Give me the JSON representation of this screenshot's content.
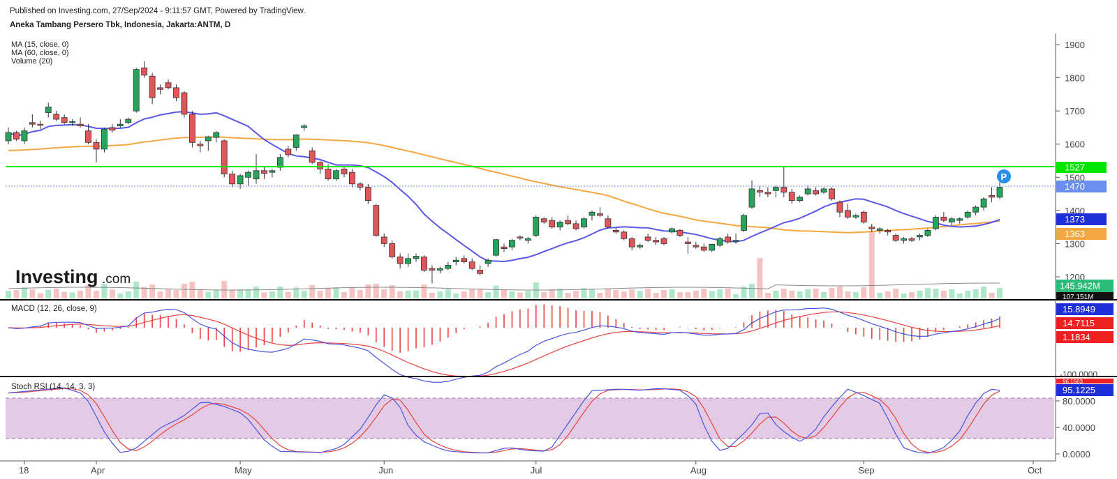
{
  "header": {
    "published": "Published on Investing.com, 27/Sep/2024 - 9:11:57 GMT, Powered by TradingView.",
    "instrument": "Aneka Tambang Persero Tbk, Indonesia, Jakarta:ANTM, D"
  },
  "watermark": {
    "brand": "Investing",
    "suffix": ".com"
  },
  "colors": {
    "up": "#26a65b",
    "down": "#e15759",
    "ma15": "#5b57e8",
    "ma60": "#f5a742",
    "support": "#00e600",
    "last": "#6b8ff0",
    "macd": "#4a54e0",
    "signal": "#e8413f",
    "stoch_k": "#4a54e0",
    "stoch_d": "#e8413f",
    "band": "#e3cbe6"
  },
  "chart_data": [
    {
      "type": "candlestick",
      "title": "Aneka Tambang Persero Tbk, Indonesia, Jakarta:ANTM, D",
      "legend": [
        "MA (15, close, 0)",
        "MA (60, close, 0)",
        "Volume (20)"
      ],
      "x_ticks": [
        "18",
        "Apr",
        "May",
        "Jun",
        "Jul",
        "Aug",
        "Sep",
        "Oct"
      ],
      "y_ticks": [
        "1200",
        "1300",
        "1400",
        "1500",
        "1600",
        "1700",
        "1800",
        "1900"
      ],
      "ylim": [
        1160,
        1930
      ],
      "price_line": 1470,
      "support_line": 1527,
      "ohlc": [
        [
          1610,
          1650,
          1600,
          1635
        ],
        [
          1635,
          1640,
          1610,
          1615
        ],
        [
          1610,
          1650,
          1600,
          1640
        ],
        [
          1665,
          1690,
          1650,
          1660
        ],
        [
          1660,
          1670,
          1645,
          1658
        ],
        [
          1695,
          1725,
          1680,
          1712
        ],
        [
          1690,
          1700,
          1670,
          1675
        ],
        [
          1680,
          1690,
          1660,
          1665
        ],
        [
          1665,
          1675,
          1655,
          1668
        ],
        [
          1660,
          1680,
          1650,
          1655
        ],
        [
          1640,
          1660,
          1600,
          1605
        ],
        [
          1605,
          1615,
          1545,
          1585
        ],
        [
          1585,
          1650,
          1575,
          1645
        ],
        [
          1650,
          1660,
          1635,
          1642
        ],
        [
          1655,
          1675,
          1650,
          1660
        ],
        [
          1665,
          1680,
          1660,
          1675
        ],
        [
          1700,
          1830,
          1695,
          1825
        ],
        [
          1830,
          1850,
          1800,
          1808
        ],
        [
          1805,
          1815,
          1720,
          1740
        ],
        [
          1770,
          1780,
          1750,
          1765
        ],
        [
          1785,
          1795,
          1765,
          1770
        ],
        [
          1770,
          1780,
          1730,
          1740
        ],
        [
          1755,
          1760,
          1680,
          1690
        ],
        [
          1690,
          1700,
          1590,
          1605
        ],
        [
          1600,
          1610,
          1575,
          1595
        ],
        [
          1610,
          1625,
          1580,
          1622
        ],
        [
          1620,
          1640,
          1605,
          1635
        ],
        [
          1610,
          1615,
          1500,
          1510
        ],
        [
          1510,
          1520,
          1470,
          1480
        ],
        [
          1480,
          1510,
          1465,
          1505
        ],
        [
          1500,
          1520,
          1475,
          1515
        ],
        [
          1495,
          1570,
          1480,
          1520
        ],
        [
          1520,
          1530,
          1495,
          1512
        ],
        [
          1515,
          1525,
          1500,
          1520
        ],
        [
          1530,
          1570,
          1520,
          1560
        ],
        [
          1585,
          1595,
          1560,
          1568
        ],
        [
          1590,
          1630,
          1580,
          1628
        ],
        [
          1650,
          1660,
          1640,
          1655
        ],
        [
          1580,
          1590,
          1540,
          1545
        ],
        [
          1545,
          1550,
          1510,
          1525
        ],
        [
          1525,
          1540,
          1490,
          1495
        ],
        [
          1495,
          1525,
          1490,
          1520
        ],
        [
          1525,
          1530,
          1500,
          1510
        ],
        [
          1515,
          1525,
          1470,
          1480
        ],
        [
          1480,
          1485,
          1460,
          1470
        ],
        [
          1470,
          1480,
          1420,
          1430
        ],
        [
          1415,
          1420,
          1320,
          1325
        ],
        [
          1320,
          1330,
          1290,
          1300
        ],
        [
          1300,
          1310,
          1255,
          1260
        ],
        [
          1260,
          1270,
          1225,
          1240
        ],
        [
          1240,
          1270,
          1230,
          1255
        ],
        [
          1255,
          1270,
          1245,
          1262
        ],
        [
          1260,
          1265,
          1215,
          1220
        ],
        [
          1225,
          1235,
          1180,
          1220
        ],
        [
          1220,
          1230,
          1210,
          1225
        ],
        [
          1225,
          1245,
          1220,
          1235
        ],
        [
          1245,
          1260,
          1235,
          1250
        ],
        [
          1255,
          1265,
          1240,
          1245
        ],
        [
          1245,
          1255,
          1220,
          1225
        ],
        [
          1220,
          1235,
          1205,
          1210
        ],
        [
          1240,
          1255,
          1230,
          1250
        ],
        [
          1265,
          1315,
          1260,
          1312
        ],
        [
          1290,
          1300,
          1275,
          1285
        ],
        [
          1290,
          1315,
          1280,
          1310
        ],
        [
          1320,
          1325,
          1310,
          1318
        ],
        [
          1310,
          1320,
          1300,
          1315
        ],
        [
          1325,
          1385,
          1320,
          1380
        ],
        [
          1375,
          1380,
          1360,
          1365
        ],
        [
          1370,
          1380,
          1345,
          1350
        ],
        [
          1350,
          1370,
          1340,
          1365
        ],
        [
          1370,
          1385,
          1355,
          1360
        ],
        [
          1360,
          1370,
          1340,
          1345
        ],
        [
          1350,
          1380,
          1345,
          1375
        ],
        [
          1385,
          1400,
          1370,
          1395
        ],
        [
          1390,
          1410,
          1380,
          1385
        ],
        [
          1375,
          1385,
          1345,
          1350
        ],
        [
          1340,
          1350,
          1330,
          1335
        ],
        [
          1335,
          1340,
          1310,
          1315
        ],
        [
          1315,
          1320,
          1280,
          1290
        ],
        [
          1290,
          1300,
          1285,
          1295
        ],
        [
          1320,
          1330,
          1305,
          1310
        ],
        [
          1310,
          1320,
          1295,
          1305
        ],
        [
          1315,
          1320,
          1295,
          1300
        ],
        [
          1335,
          1350,
          1330,
          1345
        ],
        [
          1340,
          1345,
          1320,
          1325
        ],
        [
          1305,
          1320,
          1270,
          1300
        ],
        [
          1295,
          1305,
          1285,
          1290
        ],
        [
          1290,
          1300,
          1275,
          1280
        ],
        [
          1280,
          1300,
          1275,
          1298
        ],
        [
          1295,
          1320,
          1290,
          1315
        ],
        [
          1320,
          1330,
          1300,
          1305
        ],
        [
          1310,
          1330,
          1300,
          1310
        ],
        [
          1340,
          1390,
          1335,
          1385
        ],
        [
          1410,
          1490,
          1405,
          1465
        ],
        [
          1460,
          1475,
          1440,
          1455
        ],
        [
          1455,
          1470,
          1440,
          1450
        ],
        [
          1460,
          1475,
          1440,
          1470
        ],
        [
          1470,
          1530,
          1440,
          1455
        ],
        [
          1455,
          1465,
          1420,
          1430
        ],
        [
          1430,
          1445,
          1425,
          1440
        ],
        [
          1450,
          1475,
          1445,
          1465
        ],
        [
          1460,
          1470,
          1445,
          1450
        ],
        [
          1455,
          1470,
          1450,
          1465
        ],
        [
          1465,
          1470,
          1430,
          1435
        ],
        [
          1425,
          1430,
          1380,
          1395
        ],
        [
          1400,
          1420,
          1375,
          1380
        ],
        [
          1380,
          1390,
          1375,
          1385
        ],
        [
          1395,
          1400,
          1360,
          1365
        ],
        [
          1350,
          1360,
          1335,
          1345
        ],
        [
          1340,
          1350,
          1330,
          1345
        ],
        [
          1340,
          1345,
          1325,
          1335
        ],
        [
          1325,
          1330,
          1305,
          1310
        ],
        [
          1310,
          1320,
          1300,
          1315
        ],
        [
          1315,
          1320,
          1305,
          1310
        ],
        [
          1320,
          1330,
          1310,
          1325
        ],
        [
          1325,
          1345,
          1320,
          1340
        ],
        [
          1345,
          1385,
          1340,
          1380
        ],
        [
          1380,
          1395,
          1365,
          1370
        ],
        [
          1365,
          1380,
          1355,
          1375
        ],
        [
          1370,
          1380,
          1360,
          1375
        ],
        [
          1380,
          1400,
          1375,
          1395
        ],
        [
          1395,
          1415,
          1385,
          1410
        ],
        [
          1410,
          1440,
          1400,
          1435
        ],
        [
          1445,
          1470,
          1425,
          1440
        ],
        [
          1440,
          1485,
          1435,
          1470
        ]
      ],
      "ma15_last": 1373,
      "ma60_last": 1363,
      "volume_last": "145.942M"
    },
    {
      "type": "line",
      "title": "MACD (12, 26, close, 9)",
      "series": [
        {
          "name": "MACD",
          "last": 15.8949
        },
        {
          "name": "Signal",
          "last": 14.7115
        },
        {
          "name": "Histogram",
          "last": 1.1834
        }
      ],
      "y_ticks": [
        "-100.0000"
      ]
    },
    {
      "type": "line",
      "title": "Stoch RSI (14, 14, 3, 3)",
      "y_ticks": [
        "0.0000",
        "40.0000",
        "80.0000"
      ],
      "ylim": [
        0,
        100
      ],
      "band": [
        20,
        80
      ],
      "k_last": 95.1225
    }
  ],
  "labels": {
    "support": "1527",
    "last": "1470",
    "ma15": "1373",
    "ma60": "1363",
    "volume": "145.942M",
    "volume_under": "107.151M",
    "macd": "15.8949",
    "signal": "14.7115",
    "hist": "1.1834",
    "stoch_k": "95.1225",
    "stoch_d": "96.1563",
    "p_marker": "P"
  }
}
